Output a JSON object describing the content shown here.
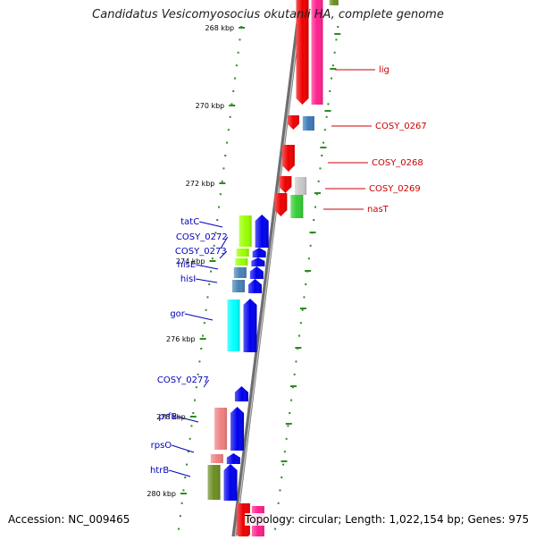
{
  "title": "Candidatus Vesicomyosocius okutanii HA, complete genome",
  "accession": "Accession: NC_009465",
  "topology_summary": "Topology: circular; Length: 1,022,154 bp; Genes: 975",
  "colors": {
    "backbone": "#808080",
    "tick": "#2e8b22",
    "label_forward": "#0000bb",
    "label_reverse": "#cc0000",
    "gene_forward": "#0000ee",
    "gene_reverse": "#ee0000"
  },
  "ruler": [
    {
      "label": "268 kbp"
    },
    {
      "label": "270 kbp"
    },
    {
      "label": "272 kbp"
    },
    {
      "label": "274 kbp"
    },
    {
      "label": "276 kbp"
    },
    {
      "label": "278 kbp"
    },
    {
      "label": "280 kbp"
    }
  ],
  "genes_reverse": [
    {
      "label": "lig",
      "cog_color": "#ff1f8e"
    },
    {
      "label": "COSY_0267",
      "cog_color": "#3b7ab8"
    },
    {
      "label": "COSY_0268",
      "cog_color": ""
    },
    {
      "label": "COSY_0269",
      "cog_color": "#c8c8c8"
    },
    {
      "label": "nasT",
      "cog_color": "#33cc33"
    }
  ],
  "genes_forward": [
    {
      "label": "tatC",
      "cog_color": "#99ff00"
    },
    {
      "label": "COSY_0272",
      "cog_color": "#99ff00"
    },
    {
      "label": "COSY_0273",
      "cog_color": "#99ff00"
    },
    {
      "label": "hisE",
      "cog_color": "#4682b4"
    },
    {
      "label": "hisI",
      "cog_color": "#4682b4"
    },
    {
      "label": "gor",
      "cog_color": "#00ffff"
    },
    {
      "label": "COSY_0277",
      "cog_color": ""
    },
    {
      "label": "prfB",
      "cog_color": "#f08080"
    },
    {
      "label": "rpsO",
      "cog_color": "#f08080"
    },
    {
      "label": "htrB",
      "cog_color": "#6b8e23"
    }
  ]
}
